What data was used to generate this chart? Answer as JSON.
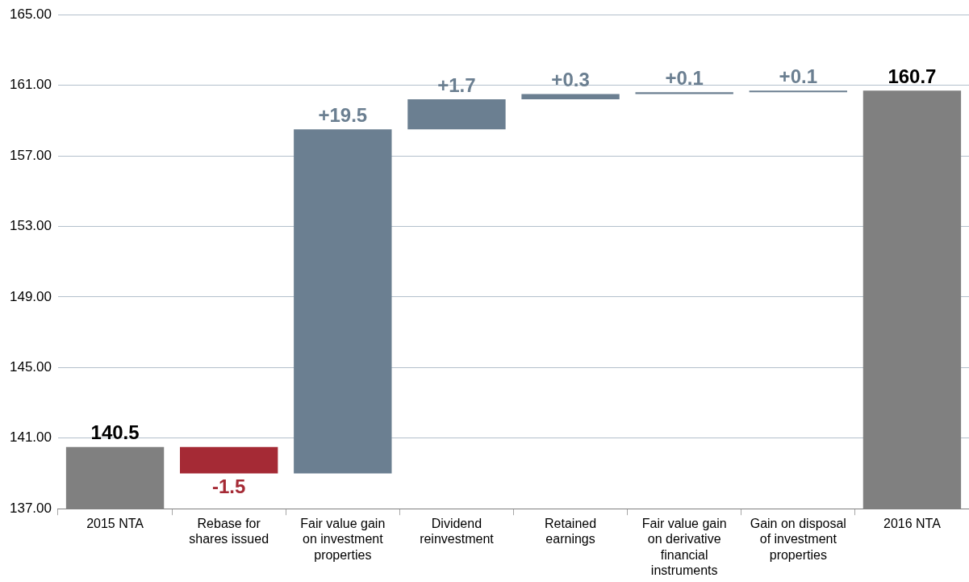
{
  "chart_data": {
    "type": "bar",
    "categories": [
      "2015 NTA",
      "Rebase for shares issued",
      "Fair value gain on investment properties",
      "Dividend reinvestment",
      "Retained earnings",
      "Fair value gain on derivative financial instruments",
      "Gain on disposal of investment properties",
      "2016 NTA"
    ],
    "values": [
      140.5,
      -1.5,
      19.5,
      1.7,
      0.3,
      0.1,
      0.1,
      160.7
    ],
    "base": [
      0,
      140.5,
      139.0,
      158.5,
      160.2,
      160.5,
      160.6,
      0
    ],
    "colors": [
      "#808080",
      "#a52a35",
      "#6b7f91",
      "#6b7f91",
      "#6b7f91",
      "#6b7f91",
      "#6b7f91",
      "#808080"
    ],
    "value_labels": [
      "140.5",
      "-1.5",
      "+19.5",
      "+1.7",
      "+0.3",
      "+0.1",
      "+0.1",
      "160.7"
    ],
    "ylim": [
      137,
      165
    ],
    "yticks": [
      {
        "value": 137,
        "label": "137.00"
      },
      {
        "value": 141,
        "label": "141.00"
      },
      {
        "value": 145,
        "label": "145.00"
      },
      {
        "value": 149,
        "label": "149.00"
      },
      {
        "value": 153,
        "label": "153.00"
      },
      {
        "value": 157,
        "label": "157.00"
      },
      {
        "value": 161,
        "label": "161.00"
      },
      {
        "value": 165,
        "label": "165.00"
      }
    ],
    "grid": "y",
    "legend": false
  }
}
